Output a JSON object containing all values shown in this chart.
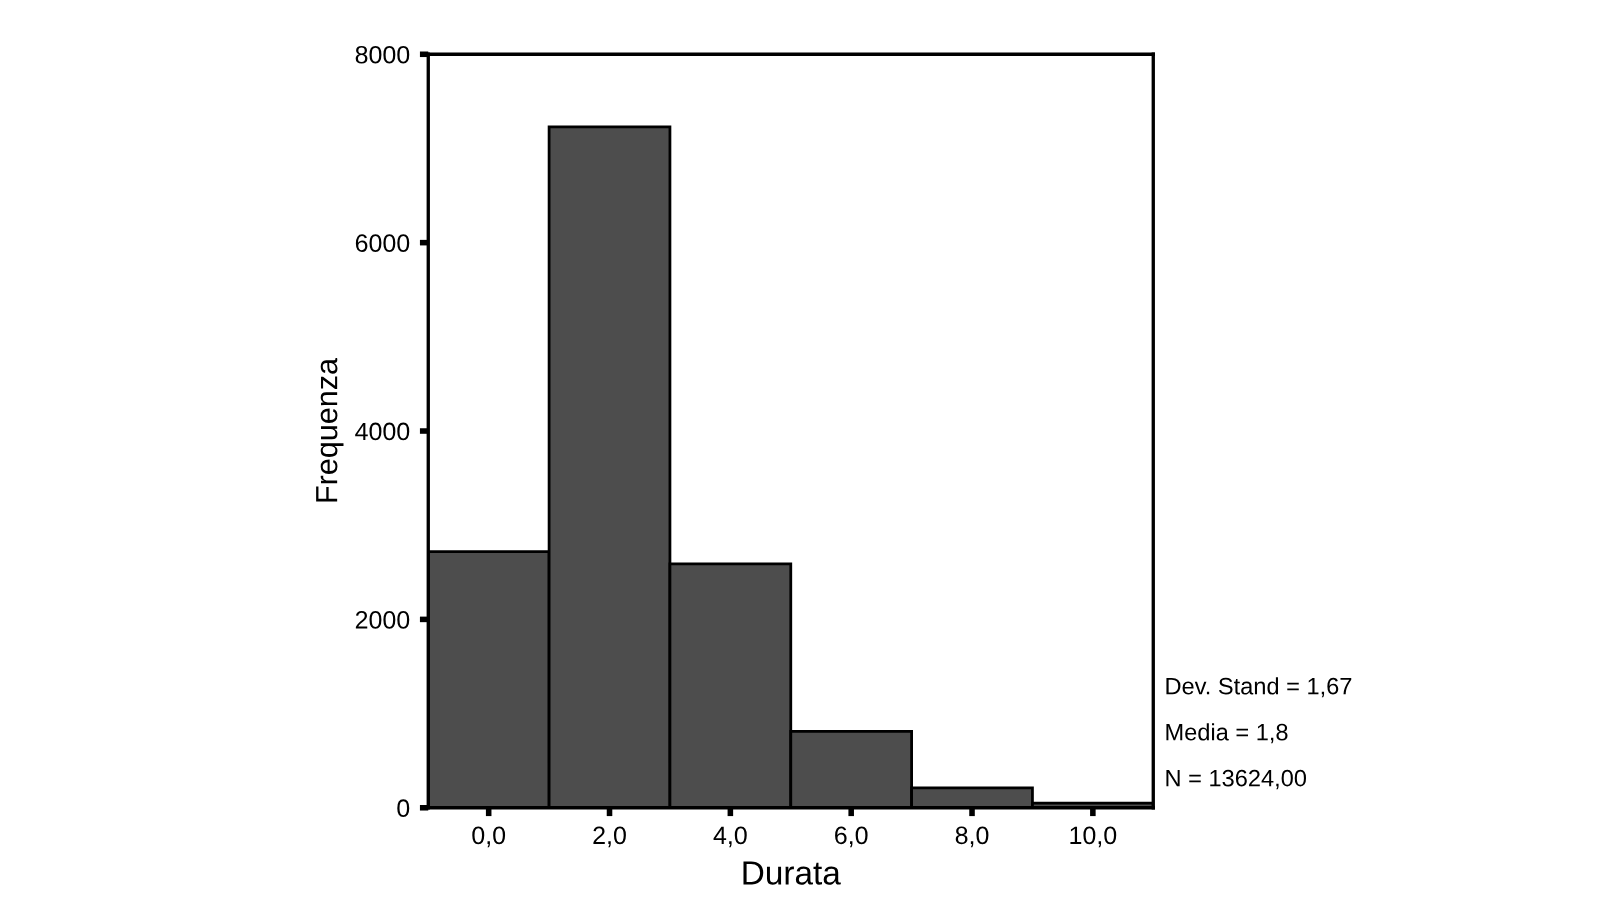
{
  "chart_data": {
    "type": "histogram",
    "xlabel": "Durata",
    "ylabel": "Frequenza",
    "bins": [
      -1,
      1,
      3,
      5,
      7,
      9,
      11
    ],
    "values": [
      2720,
      7230,
      2590,
      810,
      210,
      50
    ],
    "color": "#4d4d4d",
    "xlim": [
      -1,
      11
    ],
    "xticks": [
      {
        "value": 0,
        "label": "0,0"
      },
      {
        "value": 2,
        "label": "2,0"
      },
      {
        "value": 4,
        "label": "4,0"
      },
      {
        "value": 6,
        "label": "6,0"
      },
      {
        "value": 8,
        "label": "8,0"
      },
      {
        "value": 10,
        "label": "10,0"
      }
    ],
    "ylim": [
      0,
      8000
    ],
    "yticks": [
      0,
      2000,
      4000,
      6000,
      8000
    ],
    "grid": false,
    "legend": false,
    "annotations": [
      "Dev. Stand = 1,67",
      "Media = 1,8",
      "N = 13624,00"
    ]
  }
}
